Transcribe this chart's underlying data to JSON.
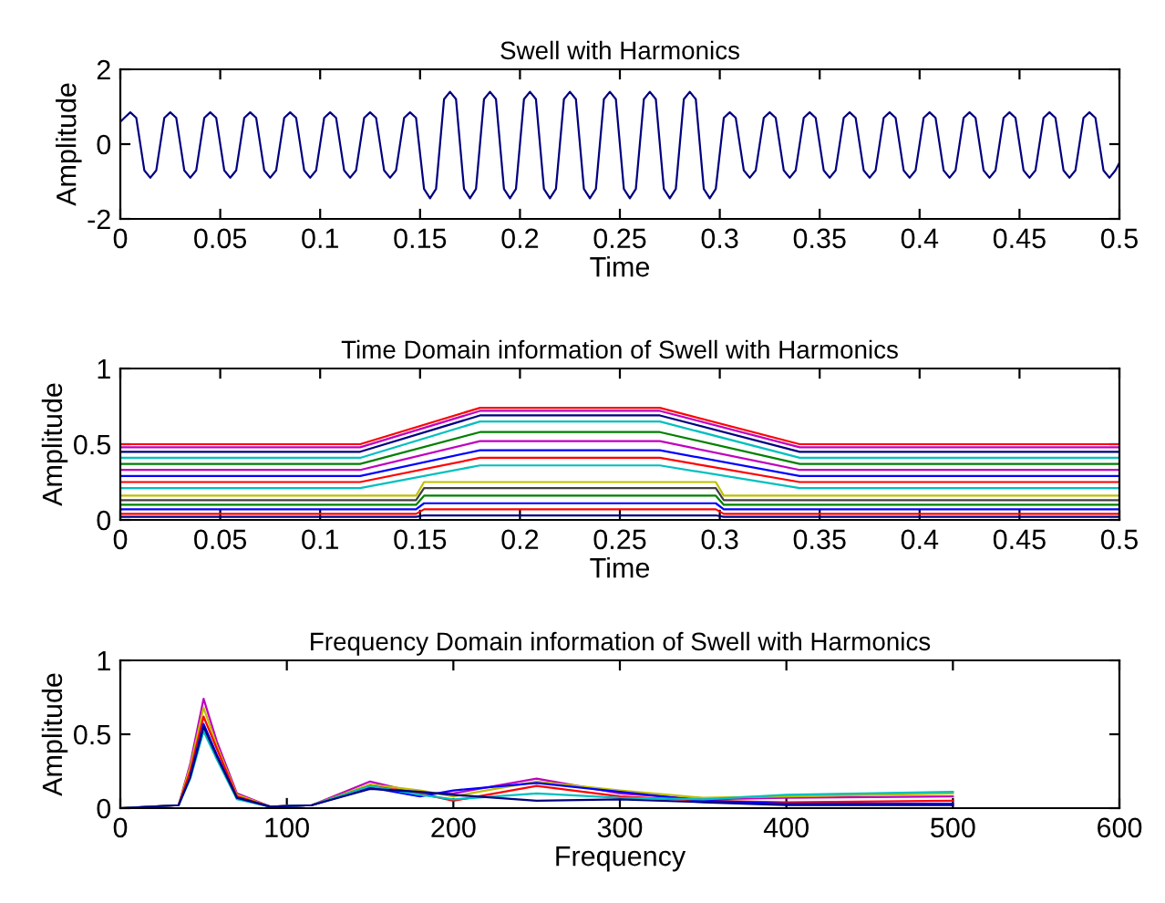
{
  "chart_data": [
    {
      "type": "line",
      "title": "Swell with Harmonics",
      "xlabel": "Time",
      "ylabel": "Amplitude",
      "xlim": [
        0,
        0.5
      ],
      "xticks": [
        0,
        0.05,
        0.1,
        0.15,
        0.2,
        0.25,
        0.3,
        0.35,
        0.4,
        0.45,
        0.5
      ],
      "ylim": [
        -2,
        2
      ],
      "yticks": [
        -2,
        0,
        2
      ],
      "grid": false,
      "legend": false,
      "series": [
        {
          "color": "#000080",
          "x": [
            0,
            0.002,
            0.005,
            0.008,
            0.012,
            0.015,
            0.018,
            0.022,
            0.025,
            0.028,
            0.032,
            0.035,
            0.038,
            0.042,
            0.045,
            0.048,
            0.052,
            0.055,
            0.058,
            0.062,
            0.065,
            0.068,
            0.072,
            0.075,
            0.078,
            0.082,
            0.085,
            0.088,
            0.092,
            0.095,
            0.098,
            0.102,
            0.105,
            0.108,
            0.112,
            0.115,
            0.118,
            0.122,
            0.125,
            0.128,
            0.132,
            0.135,
            0.138,
            0.142,
            0.145,
            0.148,
            0.152,
            0.155,
            0.158,
            0.162,
            0.165,
            0.168,
            0.172,
            0.175,
            0.178,
            0.182,
            0.185,
            0.188,
            0.192,
            0.195,
            0.198,
            0.202,
            0.205,
            0.208,
            0.212,
            0.215,
            0.218,
            0.222,
            0.225,
            0.228,
            0.232,
            0.235,
            0.238,
            0.242,
            0.245,
            0.248,
            0.252,
            0.255,
            0.258,
            0.262,
            0.265,
            0.268,
            0.272,
            0.275,
            0.278,
            0.282,
            0.285,
            0.288,
            0.292,
            0.295,
            0.298,
            0.302,
            0.305,
            0.308,
            0.312,
            0.315,
            0.318,
            0.322,
            0.325,
            0.328,
            0.332,
            0.335,
            0.338,
            0.342,
            0.345,
            0.348,
            0.352,
            0.355,
            0.358,
            0.362,
            0.365,
            0.368,
            0.372,
            0.375,
            0.378,
            0.382,
            0.385,
            0.388,
            0.392,
            0.395,
            0.398,
            0.402,
            0.405,
            0.408,
            0.412,
            0.415,
            0.418,
            0.422,
            0.425,
            0.428,
            0.432,
            0.435,
            0.438,
            0.442,
            0.445,
            0.448,
            0.452,
            0.455,
            0.458,
            0.462,
            0.465,
            0.468,
            0.472,
            0.475,
            0.478,
            0.482,
            0.485,
            0.488,
            0.492,
            0.495,
            0.498,
            0.5
          ],
          "values": [
            0.6,
            0.7,
            0.85,
            0.7,
            -0.7,
            -0.9,
            -0.7,
            0.7,
            0.85,
            0.7,
            -0.7,
            -0.9,
            -0.7,
            0.7,
            0.85,
            0.7,
            -0.7,
            -0.9,
            -0.7,
            0.7,
            0.85,
            0.7,
            -0.7,
            -0.9,
            -0.7,
            0.7,
            0.85,
            0.7,
            -0.7,
            -0.9,
            -0.7,
            0.7,
            0.85,
            0.7,
            -0.7,
            -0.9,
            -0.7,
            0.7,
            0.85,
            0.7,
            -0.7,
            -0.9,
            -0.7,
            0.7,
            0.85,
            0.7,
            -1.2,
            -1.45,
            -1.2,
            1.2,
            1.4,
            1.2,
            -1.2,
            -1.45,
            -1.2,
            1.2,
            1.4,
            1.2,
            -1.2,
            -1.45,
            -1.2,
            1.2,
            1.4,
            1.2,
            -1.2,
            -1.45,
            -1.2,
            1.2,
            1.4,
            1.2,
            -1.2,
            -1.45,
            -1.2,
            1.2,
            1.4,
            1.2,
            -1.2,
            -1.45,
            -1.2,
            1.2,
            1.4,
            1.2,
            -1.2,
            -1.45,
            -1.2,
            1.2,
            1.4,
            1.2,
            -1.2,
            -1.45,
            -1.2,
            0.7,
            0.85,
            0.7,
            -0.7,
            -0.9,
            -0.7,
            0.7,
            0.85,
            0.7,
            -0.7,
            -0.9,
            -0.7,
            0.7,
            0.85,
            0.7,
            -0.7,
            -0.9,
            -0.7,
            0.7,
            0.85,
            0.7,
            -0.7,
            -0.9,
            -0.7,
            0.7,
            0.85,
            0.7,
            -0.7,
            -0.9,
            -0.7,
            0.7,
            0.85,
            0.7,
            -0.7,
            -0.9,
            -0.7,
            0.7,
            0.85,
            0.7,
            -0.7,
            -0.9,
            -0.7,
            0.7,
            0.85,
            0.7,
            -0.7,
            -0.9,
            -0.7,
            0.7,
            0.85,
            0.7,
            -0.7,
            -0.9,
            -0.7,
            0.7,
            0.85,
            0.7,
            -0.7,
            -0.9,
            -0.7,
            -0.5
          ]
        }
      ]
    },
    {
      "type": "line",
      "title": "Time Domain information of Swell with Harmonics",
      "xlabel": "Time",
      "ylabel": "Amplitude",
      "xlim": [
        0,
        0.5
      ],
      "xticks": [
        0,
        0.05,
        0.1,
        0.15,
        0.2,
        0.25,
        0.3,
        0.35,
        0.4,
        0.45,
        0.5
      ],
      "ylim": [
        0,
        1
      ],
      "yticks": [
        0,
        0.5,
        1
      ],
      "grid": false,
      "legend": false,
      "series": [
        {
          "color": "#ff0000",
          "x": [
            0,
            0.12,
            0.18,
            0.27,
            0.34,
            0.5
          ],
          "values": [
            0.5,
            0.5,
            0.74,
            0.74,
            0.5,
            0.5
          ]
        },
        {
          "color": "#bf00bf",
          "x": [
            0,
            0.12,
            0.18,
            0.27,
            0.34,
            0.5
          ],
          "values": [
            0.48,
            0.48,
            0.72,
            0.72,
            0.48,
            0.48
          ]
        },
        {
          "color": "#000080",
          "x": [
            0,
            0.12,
            0.18,
            0.27,
            0.34,
            0.5
          ],
          "values": [
            0.45,
            0.45,
            0.69,
            0.69,
            0.45,
            0.45
          ]
        },
        {
          "color": "#00bfbf",
          "x": [
            0,
            0.12,
            0.18,
            0.27,
            0.34,
            0.5
          ],
          "values": [
            0.41,
            0.41,
            0.65,
            0.65,
            0.41,
            0.41
          ]
        },
        {
          "color": "#008000",
          "x": [
            0,
            0.12,
            0.18,
            0.27,
            0.34,
            0.5
          ],
          "values": [
            0.37,
            0.37,
            0.58,
            0.58,
            0.37,
            0.37
          ]
        },
        {
          "color": "#bf00bf",
          "x": [
            0,
            0.12,
            0.18,
            0.27,
            0.34,
            0.5
          ],
          "values": [
            0.33,
            0.33,
            0.52,
            0.52,
            0.33,
            0.33
          ]
        },
        {
          "color": "#0000ff",
          "x": [
            0,
            0.12,
            0.18,
            0.27,
            0.34,
            0.5
          ],
          "values": [
            0.29,
            0.29,
            0.46,
            0.46,
            0.29,
            0.29
          ]
        },
        {
          "color": "#ff0000",
          "x": [
            0,
            0.12,
            0.18,
            0.27,
            0.34,
            0.5
          ],
          "values": [
            0.25,
            0.25,
            0.41,
            0.41,
            0.25,
            0.25
          ]
        },
        {
          "color": "#00bfbf",
          "x": [
            0,
            0.12,
            0.18,
            0.27,
            0.34,
            0.5
          ],
          "values": [
            0.21,
            0.21,
            0.36,
            0.36,
            0.21,
            0.21
          ]
        },
        {
          "color": "#bfbf00",
          "x": [
            0,
            0.148,
            0.152,
            0.298,
            0.302,
            0.5
          ],
          "values": [
            0.16,
            0.16,
            0.25,
            0.25,
            0.16,
            0.16
          ]
        },
        {
          "color": "#404040",
          "x": [
            0,
            0.148,
            0.152,
            0.298,
            0.302,
            0.5
          ],
          "values": [
            0.13,
            0.13,
            0.21,
            0.21,
            0.13,
            0.13
          ]
        },
        {
          "color": "#008000",
          "x": [
            0,
            0.148,
            0.152,
            0.298,
            0.302,
            0.5
          ],
          "values": [
            0.1,
            0.1,
            0.16,
            0.16,
            0.1,
            0.1
          ]
        },
        {
          "color": "#0000ff",
          "x": [
            0,
            0.148,
            0.152,
            0.298,
            0.302,
            0.5
          ],
          "values": [
            0.07,
            0.07,
            0.11,
            0.11,
            0.07,
            0.07
          ]
        },
        {
          "color": "#ff0000",
          "x": [
            0,
            0.148,
            0.152,
            0.298,
            0.302,
            0.5
          ],
          "values": [
            0.04,
            0.04,
            0.07,
            0.07,
            0.04,
            0.04
          ]
        },
        {
          "color": "#000080",
          "x": [
            0,
            0.148,
            0.152,
            0.298,
            0.302,
            0.5
          ],
          "values": [
            0.02,
            0.02,
            0.03,
            0.03,
            0.02,
            0.02
          ]
        }
      ]
    },
    {
      "type": "line",
      "title": "Frequency Domain information of Swell with Harmonics",
      "xlabel": "Frequency",
      "ylabel": "Amplitude",
      "xlim": [
        0,
        600
      ],
      "xticks": [
        0,
        100,
        200,
        300,
        400,
        500,
        600
      ],
      "ylim": [
        0,
        1
      ],
      "yticks": [
        0,
        0.5,
        1
      ],
      "grid": false,
      "legend": false,
      "series": [
        {
          "color": "#bf00bf",
          "x": [
            0,
            35,
            42,
            50,
            58,
            70,
            90,
            115,
            150,
            180,
            200,
            250,
            300,
            350,
            400,
            500
          ],
          "values": [
            0,
            0.02,
            0.3,
            0.74,
            0.45,
            0.1,
            0.01,
            0.02,
            0.18,
            0.1,
            0.1,
            0.2,
            0.1,
            0.06,
            0.07,
            0.08
          ]
        },
        {
          "color": "#bfbf00",
          "x": [
            0,
            35,
            42,
            50,
            58,
            70,
            90,
            115,
            150,
            180,
            200,
            250,
            300,
            350,
            400,
            500
          ],
          "values": [
            0,
            0.02,
            0.28,
            0.68,
            0.42,
            0.09,
            0.01,
            0.02,
            0.16,
            0.12,
            0.08,
            0.18,
            0.12,
            0.07,
            0.08,
            0.1
          ]
        },
        {
          "color": "#ff0000",
          "x": [
            0,
            35,
            42,
            50,
            58,
            70,
            90,
            115,
            150,
            180,
            200,
            250,
            300,
            350,
            400,
            500
          ],
          "values": [
            0,
            0.02,
            0.25,
            0.62,
            0.4,
            0.08,
            0.01,
            0.02,
            0.15,
            0.1,
            0.05,
            0.15,
            0.08,
            0.05,
            0.04,
            0.05
          ]
        },
        {
          "color": "#0000ff",
          "x": [
            42,
            50,
            58,
            70,
            90,
            115,
            150,
            180,
            200,
            250,
            300,
            350,
            400,
            500
          ],
          "values": [
            0.22,
            0.57,
            0.36,
            0.07,
            0.01,
            0.02,
            0.14,
            0.08,
            0.12,
            0.17,
            0.11,
            0.05,
            0.03,
            0.03
          ]
        },
        {
          "color": "#00bfbf",
          "x": [
            0,
            35,
            42,
            50,
            58,
            70,
            90,
            115,
            150,
            180,
            200,
            250,
            300,
            350,
            400,
            500
          ],
          "values": [
            0,
            0.02,
            0.2,
            0.52,
            0.33,
            0.06,
            0.01,
            0.02,
            0.15,
            0.09,
            0.06,
            0.1,
            0.07,
            0.06,
            0.09,
            0.11
          ]
        },
        {
          "color": "#000080",
          "x": [
            0,
            35,
            42,
            50,
            58,
            70,
            90,
            115,
            150,
            180,
            200,
            250,
            300,
            350,
            400,
            500
          ],
          "values": [
            0,
            0.02,
            0.21,
            0.55,
            0.35,
            0.07,
            0.01,
            0.02,
            0.13,
            0.11,
            0.09,
            0.05,
            0.06,
            0.04,
            0.02,
            0.02
          ]
        }
      ]
    }
  ]
}
